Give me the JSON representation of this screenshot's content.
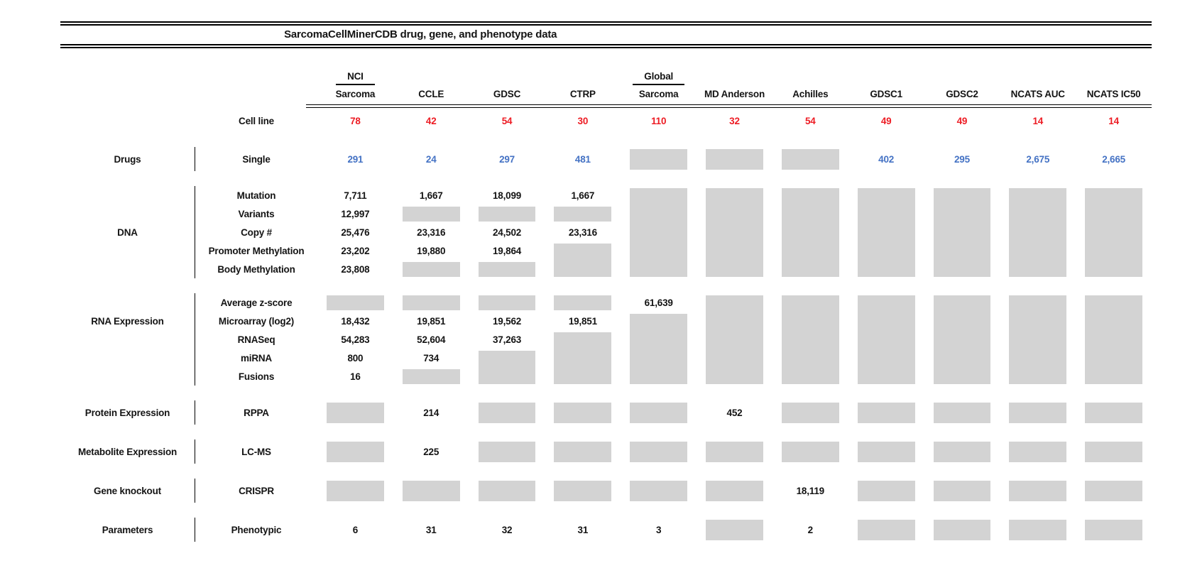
{
  "colors": {
    "red": "#ed1c24",
    "blue": "#4472c4",
    "gray": "#d3d3d3",
    "line": "#000000",
    "text": "#141414"
  },
  "chart_data": {
    "type": "table",
    "title": "SarcomaCellMinerCDB drug, gene, and phenotype data",
    "gray_box_marker": "#",
    "columns": [
      {
        "id": "nci-sarcoma",
        "top": "NCI",
        "label": "Sarcoma"
      },
      {
        "id": "ccle",
        "top": "",
        "label": "CCLE"
      },
      {
        "id": "gdsc",
        "top": "",
        "label": "GDSC"
      },
      {
        "id": "ctrp",
        "top": "",
        "label": "CTRP"
      },
      {
        "id": "global-sarcoma",
        "top": "Global",
        "label": "Sarcoma"
      },
      {
        "id": "md-anderson",
        "top": "",
        "label": "MD Anderson"
      },
      {
        "id": "achilles",
        "top": "",
        "label": "Achilles"
      },
      {
        "id": "gdsc1",
        "top": "",
        "label": "GDSC1"
      },
      {
        "id": "gdsc2",
        "top": "",
        "label": "GDSC2"
      },
      {
        "id": "ncats-auc",
        "top": "",
        "label": "NCATS AUC"
      },
      {
        "id": "ncats-ic50",
        "top": "",
        "label": "NCATS IC50"
      }
    ],
    "cell_line": {
      "label": "Cell line",
      "values": [
        "78",
        "42",
        "54",
        "30",
        "110",
        "32",
        "54",
        "49",
        "49",
        "14",
        "14"
      ]
    },
    "sections": [
      {
        "id": "drugs",
        "category": "Drugs",
        "value_color": "blue",
        "rows": [
          {
            "label": "Single",
            "cells": [
              "291",
              "24",
              "297",
              "481",
              "#",
              "#",
              "#",
              "402",
              "295",
              "2,675",
              "2,665"
            ]
          }
        ]
      },
      {
        "id": "dna",
        "category": "DNA",
        "value_color": "black",
        "rows": [
          {
            "label": "Mutation",
            "cells": [
              "7,711",
              "1,667",
              "18,099",
              "1,667",
              "#",
              "#",
              "#",
              "#",
              "#",
              "#",
              "#"
            ]
          },
          {
            "label": "Variants",
            "cells": [
              "12,997",
              "#",
              "#",
              "#",
              "#",
              "#",
              "#",
              "#",
              "#",
              "#",
              "#"
            ]
          },
          {
            "label": "Copy #",
            "cells": [
              "25,476",
              "23,316",
              "24,502",
              "23,316",
              "#",
              "#",
              "#",
              "#",
              "#",
              "#",
              "#"
            ]
          },
          {
            "label": "Promoter Methylation",
            "cells": [
              "23,202",
              "19,880",
              "19,864",
              "#",
              "#",
              "#",
              "#",
              "#",
              "#",
              "#",
              "#"
            ]
          },
          {
            "label": "Body Methylation",
            "cells": [
              "23,808",
              "#",
              "#",
              "#",
              "#",
              "#",
              "#",
              "#",
              "#",
              "#",
              "#"
            ]
          }
        ]
      },
      {
        "id": "rna-expression",
        "category": "RNA Expression",
        "value_color": "black",
        "rows": [
          {
            "label": "Average z-score",
            "cells": [
              "#",
              "#",
              "#",
              "#",
              "61,639",
              "#",
              "#",
              "#",
              "#",
              "#",
              "#"
            ]
          },
          {
            "label": "Microarray (log2)",
            "cells": [
              "18,432",
              "19,851",
              "19,562",
              "19,851",
              "#",
              "#",
              "#",
              "#",
              "#",
              "#",
              "#"
            ]
          },
          {
            "label": "RNASeq",
            "cells": [
              "54,283",
              "52,604",
              "37,263",
              "#",
              "#",
              "#",
              "#",
              "#",
              "#",
              "#",
              "#"
            ]
          },
          {
            "label": "miRNA",
            "cells": [
              "800",
              "734",
              "#",
              "#",
              "#",
              "#",
              "#",
              "#",
              "#",
              "#",
              "#"
            ]
          },
          {
            "label": "Fusions",
            "cells": [
              "16",
              "#",
              "#",
              "#",
              "#",
              "#",
              "#",
              "#",
              "#",
              "#",
              "#"
            ]
          }
        ]
      },
      {
        "id": "protein-expression",
        "category": "Protein Expression",
        "value_color": "black",
        "rows": [
          {
            "label": "RPPA",
            "cells": [
              "#",
              "214",
              "#",
              "#",
              "#",
              "452",
              "#",
              "#",
              "#",
              "#",
              "#"
            ]
          }
        ]
      },
      {
        "id": "metabolite-expression",
        "category": "Metabolite Expression",
        "value_color": "black",
        "rows": [
          {
            "label": "LC-MS",
            "cells": [
              "#",
              "225",
              "#",
              "#",
              "#",
              "#",
              "#",
              "#",
              "#",
              "#",
              "#"
            ]
          }
        ]
      },
      {
        "id": "gene-knockout",
        "category": "Gene knockout",
        "value_color": "black",
        "rows": [
          {
            "label": "CRISPR",
            "cells": [
              "#",
              "#",
              "#",
              "#",
              "#",
              "#",
              "18,119",
              "#",
              "#",
              "#",
              "#"
            ]
          }
        ]
      },
      {
        "id": "parameters",
        "category": "Parameters",
        "value_color": "black",
        "rows": [
          {
            "label": "Phenotypic",
            "cells": [
              "6",
              "31",
              "32",
              "31",
              "3",
              "#",
              "2",
              "#",
              "#",
              "#",
              "#"
            ]
          }
        ]
      }
    ]
  }
}
